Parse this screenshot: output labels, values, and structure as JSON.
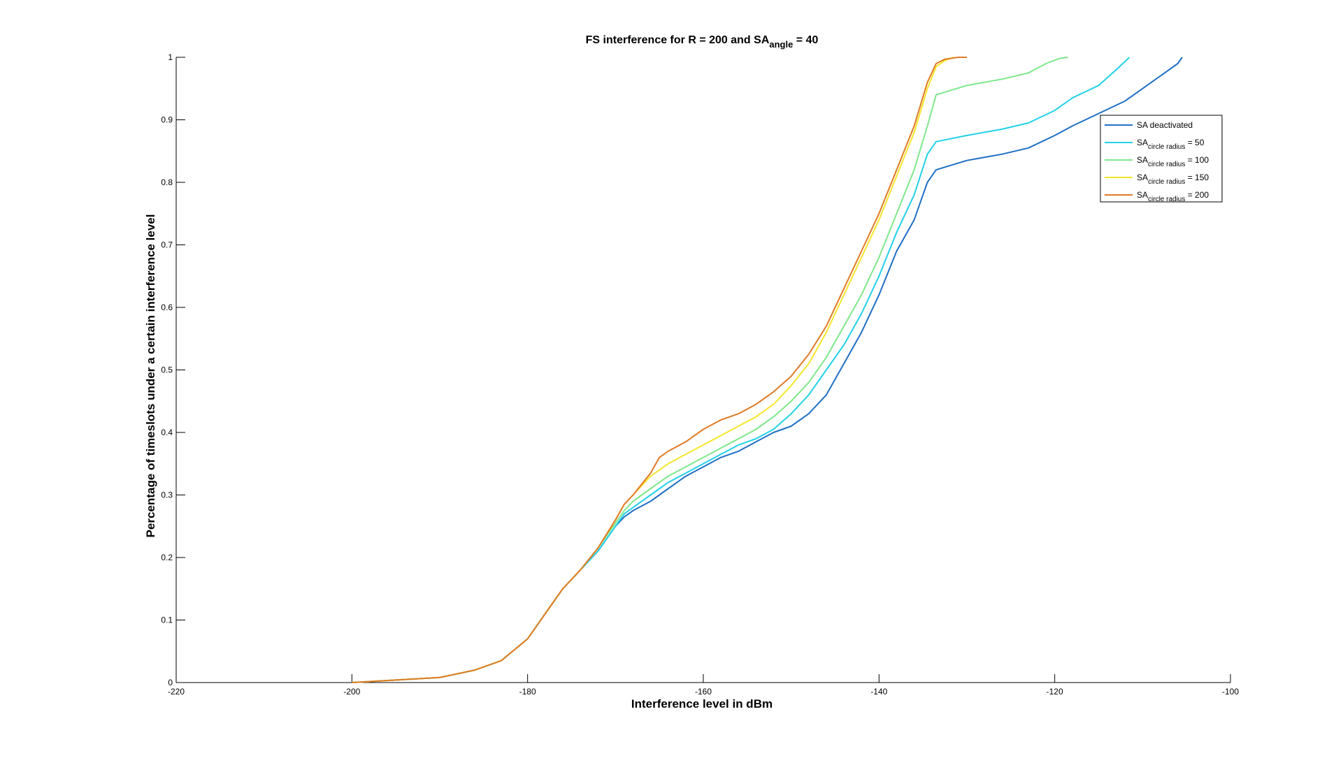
{
  "chart_data": {
    "type": "line",
    "title": {
      "main": "FS interference for R = 200 and SA",
      "sub": "angle",
      "tail": " = 40"
    },
    "xlabel": "Interference level in dBm",
    "ylabel": "Percentage of timeslots under a certain interference level",
    "xlim": [
      -220,
      -100
    ],
    "ylim": [
      0,
      1
    ],
    "x_ticks": [
      "-220",
      "-200",
      "-180",
      "-160",
      "-140",
      "-120",
      "-100"
    ],
    "y_ticks": [
      "0",
      "0.1",
      "0.2",
      "0.3",
      "0.4",
      "0.5",
      "0.6",
      "0.7",
      "0.8",
      "0.9",
      "1"
    ],
    "grid": false,
    "legend_position": "top-right",
    "series": [
      {
        "legend": {
          "main": "SA deactivated",
          "sub": "",
          "tail": ""
        },
        "color": "#1f6fc5",
        "x": [
          -200,
          -195,
          -190,
          -186,
          -183,
          -180,
          -178,
          -176,
          -174,
          -172,
          -170,
          -169,
          -168,
          -166,
          -164,
          -162,
          -160,
          -158,
          -156,
          -154,
          -152,
          -150,
          -148,
          -146,
          -144,
          -142,
          -140,
          -138,
          -136,
          -134.5,
          -133.5,
          -130,
          -126,
          -123,
          -120,
          -118,
          -115,
          -112,
          -110,
          -108,
          -106,
          -105.5
        ],
        "y": [
          0,
          0.004,
          0.008,
          0.02,
          0.035,
          0.07,
          0.11,
          0.15,
          0.18,
          0.21,
          0.25,
          0.265,
          0.275,
          0.29,
          0.31,
          0.33,
          0.345,
          0.36,
          0.37,
          0.385,
          0.4,
          0.41,
          0.43,
          0.46,
          0.51,
          0.56,
          0.62,
          0.69,
          0.74,
          0.8,
          0.82,
          0.835,
          0.845,
          0.855,
          0.875,
          0.89,
          0.91,
          0.93,
          0.95,
          0.97,
          0.99,
          1.0
        ]
      },
      {
        "legend": {
          "main": "SA",
          "sub": "circle radius",
          "tail": " = 50"
        },
        "color": "#21d1e8",
        "x": [
          -200,
          -195,
          -190,
          -186,
          -183,
          -180,
          -178,
          -176,
          -174,
          -172,
          -170,
          -169,
          -168,
          -166,
          -164,
          -162,
          -160,
          -158,
          -156,
          -154,
          -152,
          -150,
          -148,
          -146,
          -144,
          -142,
          -140,
          -138,
          -136,
          -134.5,
          -133.5,
          -130,
          -126,
          -123,
          -120,
          -118,
          -115,
          -113,
          -111.5
        ],
        "y": [
          0,
          0.004,
          0.008,
          0.02,
          0.035,
          0.07,
          0.11,
          0.15,
          0.18,
          0.21,
          0.25,
          0.27,
          0.28,
          0.3,
          0.32,
          0.335,
          0.35,
          0.365,
          0.38,
          0.39,
          0.405,
          0.43,
          0.46,
          0.5,
          0.54,
          0.59,
          0.65,
          0.72,
          0.78,
          0.845,
          0.865,
          0.875,
          0.885,
          0.895,
          0.915,
          0.935,
          0.955,
          0.98,
          1.0
        ]
      },
      {
        "legend": {
          "main": "SA",
          "sub": "circle radius",
          "tail": " = 100"
        },
        "color": "#7ee88a",
        "x": [
          -200,
          -195,
          -190,
          -186,
          -183,
          -180,
          -178,
          -176,
          -174,
          -172,
          -170,
          -169,
          -168,
          -166,
          -164,
          -162,
          -160,
          -158,
          -156,
          -154,
          -152,
          -150,
          -148,
          -146,
          -144,
          -142,
          -140,
          -138,
          -136,
          -134.5,
          -133.5,
          -130,
          -126,
          -123,
          -121,
          -119.5,
          -118.5
        ],
        "y": [
          0,
          0.004,
          0.008,
          0.02,
          0.035,
          0.07,
          0.11,
          0.15,
          0.18,
          0.215,
          0.255,
          0.275,
          0.29,
          0.31,
          0.33,
          0.345,
          0.36,
          0.375,
          0.39,
          0.405,
          0.425,
          0.45,
          0.48,
          0.52,
          0.57,
          0.62,
          0.68,
          0.75,
          0.82,
          0.89,
          0.94,
          0.955,
          0.965,
          0.975,
          0.99,
          0.998,
          1.0
        ]
      },
      {
        "legend": {
          "main": "SA",
          "sub": "circle radius",
          "tail": " = 150"
        },
        "color": "#f5e62a",
        "x": [
          -200,
          -195,
          -190,
          -186,
          -183,
          -180,
          -178,
          -176,
          -174,
          -172,
          -170,
          -169,
          -168,
          -166,
          -164,
          -162,
          -160,
          -158,
          -156,
          -154,
          -152,
          -150,
          -148,
          -146,
          -144,
          -142,
          -140,
          -138,
          -136,
          -134.5,
          -133.5,
          -132.5,
          -131.5
        ],
        "y": [
          0,
          0.004,
          0.008,
          0.02,
          0.035,
          0.07,
          0.11,
          0.15,
          0.18,
          0.215,
          0.26,
          0.285,
          0.3,
          0.33,
          0.35,
          0.365,
          0.38,
          0.395,
          0.41,
          0.425,
          0.445,
          0.475,
          0.51,
          0.56,
          0.62,
          0.68,
          0.74,
          0.81,
          0.88,
          0.95,
          0.985,
          0.995,
          1.0
        ]
      },
      {
        "legend": {
          "main": "SA",
          "sub": "circle radius",
          "tail": " = 200"
        },
        "color": "#e07a24",
        "x": [
          -200,
          -195,
          -190,
          -186,
          -183,
          -180,
          -178,
          -176,
          -174,
          -172,
          -170,
          -169,
          -168,
          -166,
          -165,
          -164,
          -162,
          -160,
          -158,
          -156,
          -154,
          -152,
          -150,
          -148,
          -146,
          -144,
          -142,
          -140,
          -138,
          -136,
          -134.5,
          -133.5,
          -132.5,
          -131,
          -130
        ],
        "y": [
          0,
          0.004,
          0.008,
          0.02,
          0.035,
          0.07,
          0.11,
          0.15,
          0.18,
          0.215,
          0.26,
          0.285,
          0.3,
          0.335,
          0.36,
          0.37,
          0.385,
          0.405,
          0.42,
          0.43,
          0.445,
          0.465,
          0.49,
          0.525,
          0.57,
          0.63,
          0.69,
          0.75,
          0.82,
          0.89,
          0.96,
          0.99,
          0.997,
          1.0,
          1.0
        ]
      }
    ]
  }
}
